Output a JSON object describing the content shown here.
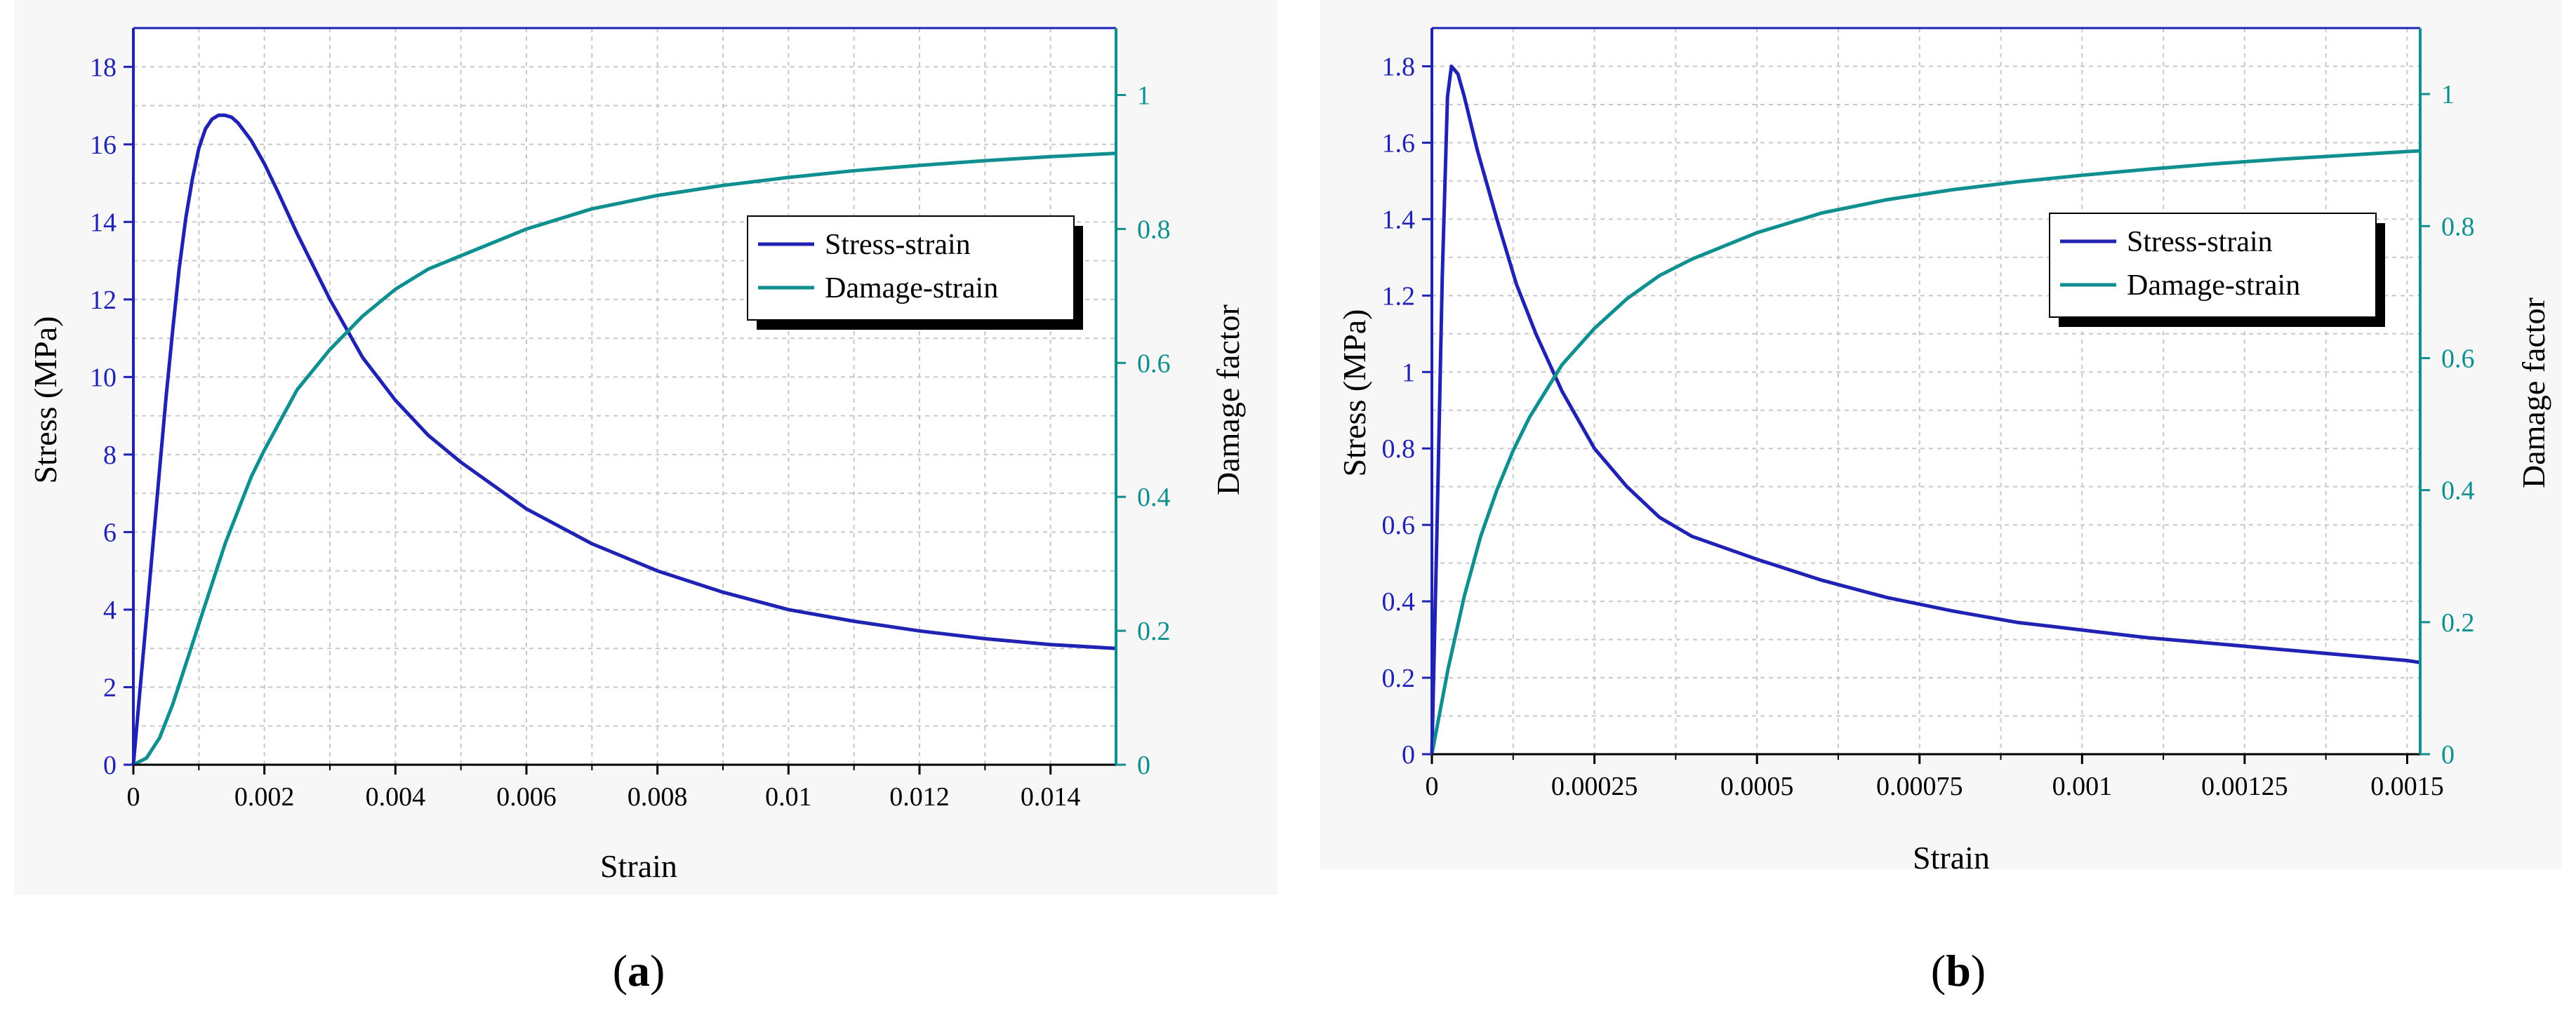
{
  "colors": {
    "stress": "#1f22b3",
    "damage": "#0f8f8f",
    "grid": "#c8c8c8",
    "axis_left": "#1f22b3",
    "axis_right": "#0f8f8f",
    "frame": "#000000"
  },
  "chart_data": [
    {
      "type": "line",
      "panel": "a",
      "caption": "a",
      "xlabel": "Strain",
      "ylabel": "Stress (MPa)",
      "y2label": "Damage factor",
      "xlim": [
        0,
        0.015
      ],
      "ylim": [
        0,
        19
      ],
      "y2lim": [
        0,
        1.1
      ],
      "xticks": [
        "0",
        "0.002",
        "0.004",
        "0.006",
        "0.008",
        "0.01",
        "0.012",
        "0.014"
      ],
      "xtick_values": [
        0,
        0.002,
        0.004,
        0.006,
        0.008,
        0.01,
        0.012,
        0.014
      ],
      "yticks": [
        "0",
        "2",
        "4",
        "6",
        "8",
        "10",
        "12",
        "14",
        "16",
        "18"
      ],
      "ytick_values": [
        0,
        2,
        4,
        6,
        8,
        10,
        12,
        14,
        16,
        18
      ],
      "y2ticks": [
        "0",
        "0.2",
        "0.4",
        "0.6",
        "0.8",
        "1"
      ],
      "y2tick_values": [
        0,
        0.2,
        0.4,
        0.6,
        0.8,
        1.0
      ],
      "legend": {
        "position": "top-right",
        "entries": [
          "Stress-strain",
          "Damage-strain"
        ]
      },
      "series": [
        {
          "name": "Stress-strain",
          "axis": "left",
          "x": [
            0,
            0.0001,
            0.0002,
            0.0003,
            0.0004,
            0.0005,
            0.0006,
            0.0007,
            0.0008,
            0.0009,
            0.001,
            0.0011,
            0.0012,
            0.0013,
            0.0014,
            0.0015,
            0.0016,
            0.0018,
            0.002,
            0.0022,
            0.0025,
            0.003,
            0.0035,
            0.004,
            0.0045,
            0.005,
            0.0055,
            0.006,
            0.007,
            0.008,
            0.009,
            0.01,
            0.011,
            0.012,
            0.013,
            0.014,
            0.015
          ],
          "values": [
            0,
            1.9,
            3.8,
            5.7,
            7.6,
            9.5,
            11.2,
            12.8,
            14.1,
            15.1,
            15.9,
            16.4,
            16.65,
            16.75,
            16.75,
            16.7,
            16.55,
            16.1,
            15.5,
            14.8,
            13.7,
            12.0,
            10.5,
            9.4,
            8.5,
            7.8,
            7.2,
            6.6,
            5.7,
            5.0,
            4.45,
            4.0,
            3.7,
            3.45,
            3.25,
            3.1,
            3.0
          ]
        },
        {
          "name": "Damage-strain",
          "axis": "right",
          "x": [
            0,
            0.0002,
            0.0004,
            0.0006,
            0.0008,
            0.001,
            0.0012,
            0.0014,
            0.0016,
            0.0018,
            0.002,
            0.0025,
            0.003,
            0.0035,
            0.004,
            0.0045,
            0.005,
            0.006,
            0.007,
            0.008,
            0.009,
            0.01,
            0.011,
            0.012,
            0.013,
            0.014,
            0.015
          ],
          "values": [
            0,
            0.01,
            0.04,
            0.09,
            0.15,
            0.21,
            0.27,
            0.33,
            0.38,
            0.43,
            0.47,
            0.56,
            0.62,
            0.67,
            0.71,
            0.74,
            0.76,
            0.8,
            0.83,
            0.85,
            0.865,
            0.877,
            0.887,
            0.895,
            0.902,
            0.908,
            0.913
          ]
        }
      ]
    },
    {
      "type": "line",
      "panel": "b",
      "caption": "b",
      "xlabel": "Strain",
      "ylabel": "Stress (MPa)",
      "y2label": "Damage factor",
      "xlim": [
        0,
        0.00152
      ],
      "ylim": [
        0,
        1.9
      ],
      "y2lim": [
        0,
        1.1
      ],
      "xticks": [
        "0",
        "0.00025",
        "0.0005",
        "0.00075",
        "0.001",
        "0.00125",
        "0.0015"
      ],
      "xtick_values": [
        0,
        0.00025,
        0.0005,
        0.00075,
        0.001,
        0.00125,
        0.0015
      ],
      "yticks": [
        "0",
        "0.2",
        "0.4",
        "0.6",
        "0.8",
        "1",
        "1.2",
        "1.4",
        "1.6",
        "1.8"
      ],
      "ytick_values": [
        0,
        0.2,
        0.4,
        0.6,
        0.8,
        1.0,
        1.2,
        1.4,
        1.6,
        1.8
      ],
      "y2ticks": [
        "0",
        "0.2",
        "0.4",
        "0.6",
        "0.8",
        "1"
      ],
      "y2tick_values": [
        0,
        0.2,
        0.4,
        0.6,
        0.8,
        1.0
      ],
      "legend": {
        "position": "top-right",
        "entries": [
          "Stress-strain",
          "Damage-strain"
        ]
      },
      "series": [
        {
          "name": "Stress-strain",
          "axis": "left",
          "x": [
            0,
            8e-06,
            1.6e-05,
            2.4e-05,
            3e-05,
            4e-05,
            5e-05,
            7e-05,
            0.0001,
            0.00013,
            0.00016,
            0.0002,
            0.00025,
            0.0003,
            0.00035,
            0.0004,
            0.0005,
            0.0006,
            0.0007,
            0.0008,
            0.0009,
            0.001,
            0.0011,
            0.0012,
            0.0013,
            0.0014,
            0.0015,
            0.00152
          ],
          "values": [
            0,
            0.6,
            1.25,
            1.72,
            1.8,
            1.78,
            1.72,
            1.58,
            1.4,
            1.23,
            1.1,
            0.95,
            0.8,
            0.7,
            0.62,
            0.57,
            0.51,
            0.455,
            0.41,
            0.375,
            0.345,
            0.325,
            0.305,
            0.29,
            0.275,
            0.26,
            0.245,
            0.24
          ]
        },
        {
          "name": "Damage-strain",
          "axis": "right",
          "x": [
            0,
            2.5e-05,
            5e-05,
            7.5e-05,
            0.0001,
            0.000125,
            0.00015,
            0.000175,
            0.0002,
            0.00025,
            0.0003,
            0.00035,
            0.0004,
            0.0005,
            0.0006,
            0.0007,
            0.0008,
            0.0009,
            0.001,
            0.0011,
            0.0012,
            0.0013,
            0.0014,
            0.0015,
            0.00152
          ],
          "values": [
            0,
            0.13,
            0.24,
            0.33,
            0.4,
            0.46,
            0.51,
            0.55,
            0.59,
            0.645,
            0.69,
            0.725,
            0.75,
            0.79,
            0.82,
            0.84,
            0.855,
            0.867,
            0.877,
            0.886,
            0.894,
            0.901,
            0.907,
            0.913,
            0.914
          ]
        }
      ]
    }
  ]
}
